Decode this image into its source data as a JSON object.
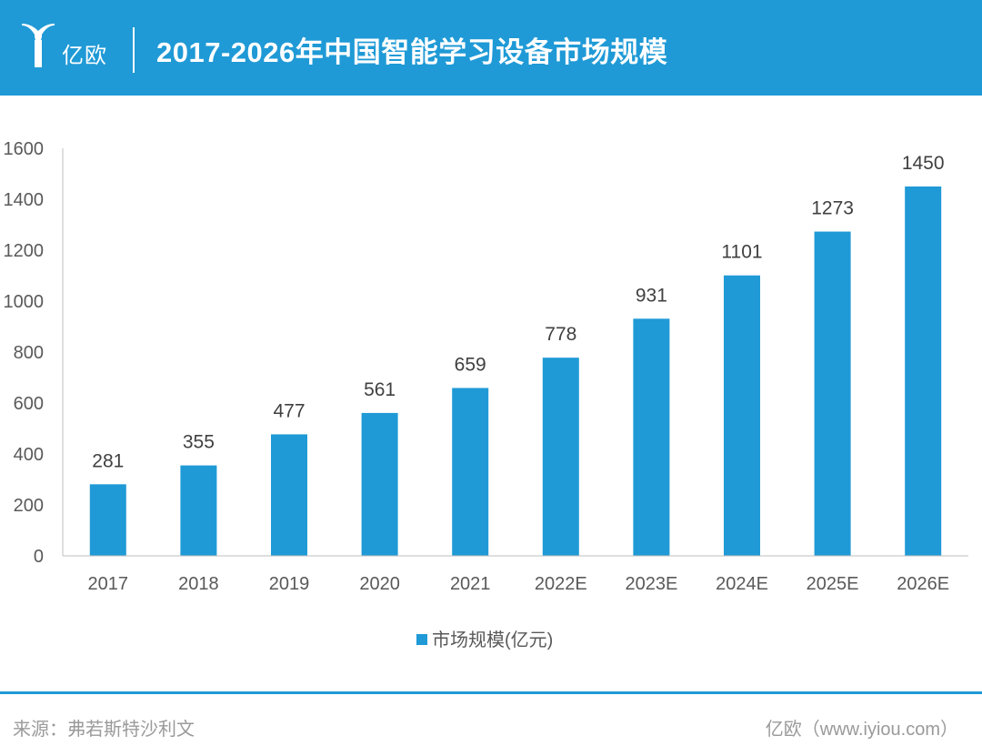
{
  "header": {
    "logo_text": "亿欧",
    "title": "2017-2026年中国智能学习设备市场规模"
  },
  "colors": {
    "brand": "#1f9ad6",
    "bar": "#1f9ad6",
    "axis": "#bfbfbf",
    "footer_text": "#9a9a9a"
  },
  "chart_data": {
    "type": "bar",
    "categories": [
      "2017",
      "2018",
      "2019",
      "2020",
      "2021",
      "2022E",
      "2023E",
      "2024E",
      "2025E",
      "2026E"
    ],
    "series": [
      {
        "name": "市场规模(亿元)",
        "values": [
          281,
          355,
          477,
          561,
          659,
          778,
          931,
          1101,
          1273,
          1450
        ]
      }
    ],
    "title": "2017-2026年中国智能学习设备市场规模",
    "ylim": [
      0,
      1600
    ],
    "yticks": [
      0,
      200,
      400,
      600,
      800,
      1000,
      1200,
      1400,
      1600
    ],
    "grid": false,
    "data_labels": true,
    "legend_position": "bottom-center"
  },
  "footer": {
    "source": "来源：弗若斯特沙利文",
    "site": "亿欧（www.iyiou.com）"
  }
}
